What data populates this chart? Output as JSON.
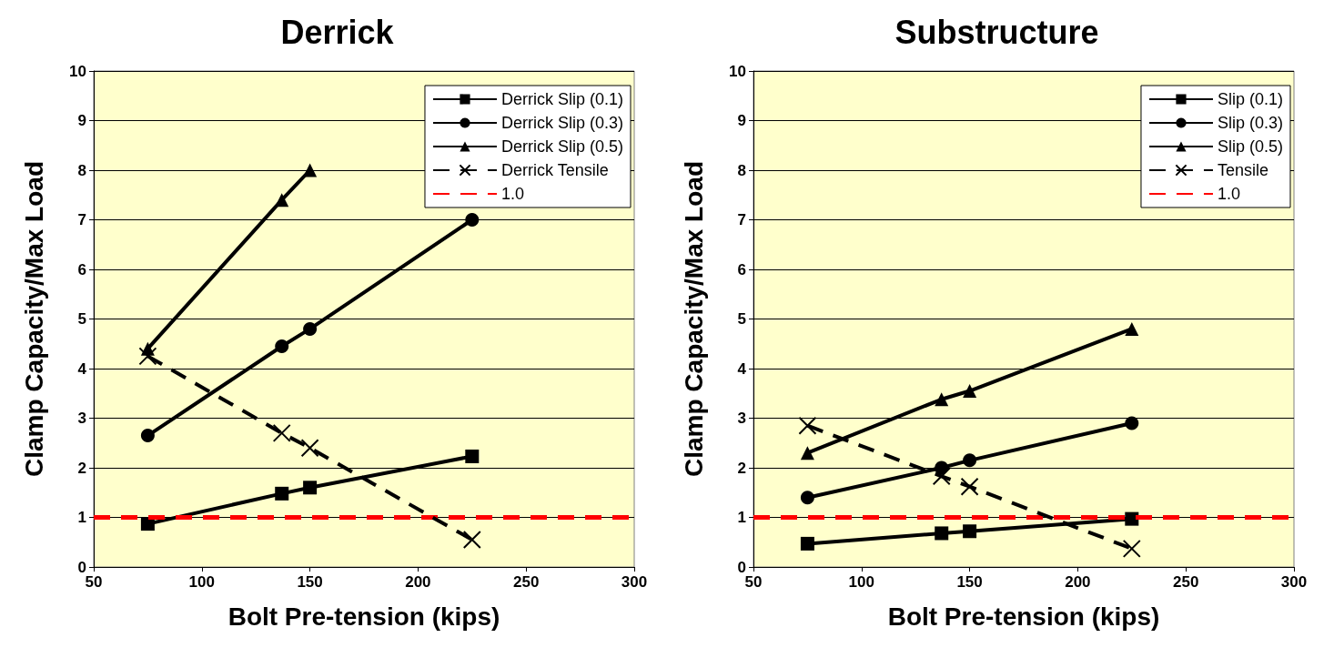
{
  "chart_data": [
    {
      "type": "line",
      "title": "Derrick",
      "xlabel": "Bolt Pre-tension (kips)",
      "ylabel": "Clamp Capacity/Max Load",
      "x": [
        75,
        137,
        150,
        225
      ],
      "xlim": [
        50,
        300
      ],
      "xticks": [
        50,
        100,
        150,
        200,
        250,
        300
      ],
      "ylim": [
        0,
        10
      ],
      "yticks": [
        0,
        1,
        2,
        3,
        4,
        5,
        6,
        7,
        8,
        9,
        10
      ],
      "grid": "y",
      "legend": "top right",
      "series": [
        {
          "name": "Derrick Slip (0.1)",
          "color": "#000000",
          "marker": "square",
          "line_style": "solid",
          "values": [
            0.87,
            1.48,
            1.6,
            2.23
          ]
        },
        {
          "name": "Derrick Slip (0.3)",
          "color": "#000000",
          "marker": "circle",
          "line_style": "solid",
          "values": [
            2.65,
            4.45,
            4.8,
            7.0
          ]
        },
        {
          "name": "Derrick Slip (0.5)",
          "color": "#000000",
          "marker": "triangle",
          "line_style": "solid",
          "values": [
            4.4,
            7.4,
            8.0,
            null
          ]
        },
        {
          "name": "Derrick Tensile",
          "color": "#000000",
          "marker": "cross",
          "line_style": "dashed",
          "values": [
            4.25,
            2.7,
            2.4,
            0.55
          ]
        }
      ],
      "ref_lines": [
        {
          "axis": "y",
          "value": 1,
          "label": "1.0",
          "color": "#ff0000",
          "line_style": "dashed"
        }
      ]
    },
    {
      "type": "line",
      "title": "Substructure",
      "xlabel": "Bolt Pre-tension (kips)",
      "ylabel": "Clamp Capacity/Max Load",
      "x": [
        75,
        137,
        150,
        225
      ],
      "xlim": [
        50,
        300
      ],
      "xticks": [
        50,
        100,
        150,
        200,
        250,
        300
      ],
      "ylim": [
        0,
        10
      ],
      "yticks": [
        0,
        1,
        2,
        3,
        4,
        5,
        6,
        7,
        8,
        9,
        10
      ],
      "grid": "y",
      "legend": "top right",
      "series": [
        {
          "name": "Slip (0.1)",
          "color": "#000000",
          "marker": "square",
          "line_style": "solid",
          "values": [
            0.47,
            0.68,
            0.72,
            0.97
          ]
        },
        {
          "name": "Slip (0.3)",
          "color": "#000000",
          "marker": "circle",
          "line_style": "solid",
          "values": [
            1.4,
            2.0,
            2.15,
            2.9
          ]
        },
        {
          "name": "Slip (0.5)",
          "color": "#000000",
          "marker": "triangle",
          "line_style": "solid",
          "values": [
            2.3,
            3.38,
            3.55,
            4.8
          ]
        },
        {
          "name": "Tensile",
          "color": "#000000",
          "marker": "cross",
          "line_style": "dashed",
          "values": [
            2.85,
            1.83,
            1.62,
            0.37
          ]
        }
      ],
      "ref_lines": [
        {
          "axis": "y",
          "value": 1,
          "label": "1.0",
          "color": "#ff0000",
          "line_style": "dashed"
        }
      ]
    }
  ]
}
